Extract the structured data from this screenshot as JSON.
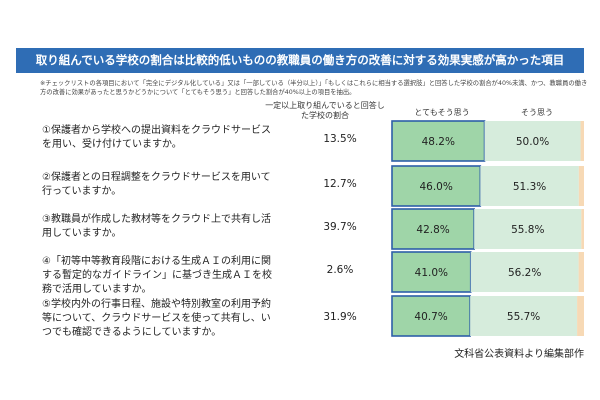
{
  "title": "取り組んでいる学校の割合は比較的低いものの教職員の働き方の改善に対する効果実感が高かった項目",
  "note": "※チェックリストの各項目において「完全にデジタル化している」又は「一部している（半分以上）」「もしくはこれらに相当する選択肢」と回答した学校の割合が40%未満、かつ、教職員の働き方の改善に効果があったと思うかどうかについて「とてもそう思う」と回答した割合が40%以上の項目を抽出。",
  "headers": {
    "rate": "一定以上取り組んでいると回答した学校の割合",
    "strong": "とてもそう思う",
    "agree": "そう思う"
  },
  "source": "文科省公表資料より編集部作",
  "colors": {
    "title_bg": "#2f6db5",
    "strong": "#9fd5a8",
    "strong_border": "#2d5fa8",
    "agree": "#d6ecdc",
    "other": "#f7d9b5"
  },
  "chart_data": {
    "type": "bar",
    "orientation": "horizontal-stacked",
    "categories": [
      "①保護者から学校への提出資料をクラウドサービスを用い、受け付けていますか。",
      "②保護者との日程調整をクラウドサービスを用いて行っていますか。",
      "③教職員が作成した教材等をクラウド上で共有し活用していますか。",
      "④「初等中等教育段階における生成ＡＩの利用に関する暫定的なガイドライン」に基づき生成ＡＩを校務で活用していますか。",
      "⑤学校内外の行事日程、施設や特別教室の利用予約等について、クラウドサービスを使って共有し、いつでも確認できるようにしていますか。"
    ],
    "rate_labels": [
      "13.5%",
      "12.7%",
      "39.7%",
      "2.6%",
      "31.9%"
    ],
    "series": [
      {
        "name": "とてもそう思う",
        "values": [
          48.2,
          46.0,
          42.8,
          41.0,
          40.7
        ],
        "labels": [
          "48.2%",
          "46.0%",
          "42.8%",
          "41.0%",
          "40.7%"
        ]
      },
      {
        "name": "そう思う",
        "values": [
          50.0,
          51.3,
          55.8,
          56.2,
          55.7
        ],
        "labels": [
          "50.0%",
          "51.3%",
          "55.8%",
          "56.2%",
          "55.7%"
        ]
      }
    ],
    "xlim": [
      0,
      100
    ]
  }
}
